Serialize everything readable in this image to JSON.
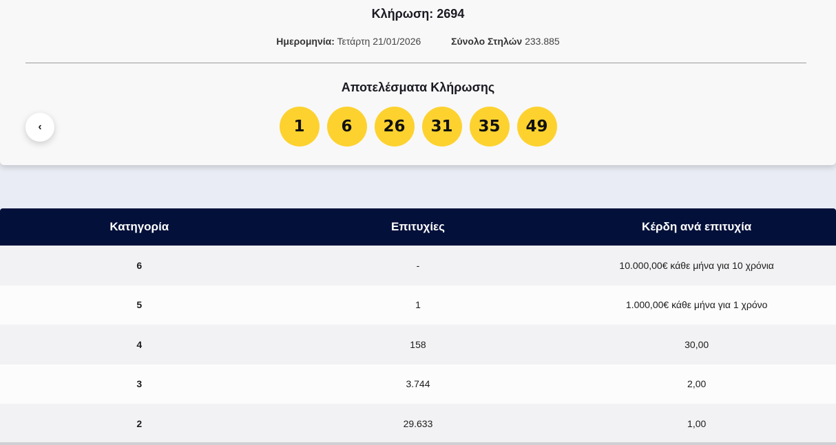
{
  "draw": {
    "title": "Κλήρωση: 2694",
    "date_label": "Ημερομηνία:",
    "date_value": "Τετάρτη 21/01/2026",
    "columns_label": "Σύνολο Στηλών",
    "columns_value": "233.885",
    "results_title": "Αποτελέσματα Κλήρωσης",
    "numbers": [
      "1",
      "6",
      "26",
      "31",
      "35",
      "49"
    ],
    "ball_color": "#fdd22f",
    "prev_icon": "‹"
  },
  "table": {
    "headers": [
      "Κατηγορία",
      "Επιτυχίες",
      "Κέρδη ανά επιτυχία"
    ],
    "header_color": "#02103a",
    "rows": [
      {
        "category": "6",
        "winners": "-",
        "prize": "10.000,00€ κάθε μήνα για 10 χρόνια"
      },
      {
        "category": "5",
        "winners": "1",
        "prize": "1.000,00€ κάθε μήνα για 1 χρόνο"
      },
      {
        "category": "4",
        "winners": "158",
        "prize": "30,00"
      },
      {
        "category": "3",
        "winners": "3.744",
        "prize": "2,00"
      },
      {
        "category": "2",
        "winners": "29.633",
        "prize": "1,00"
      }
    ]
  }
}
